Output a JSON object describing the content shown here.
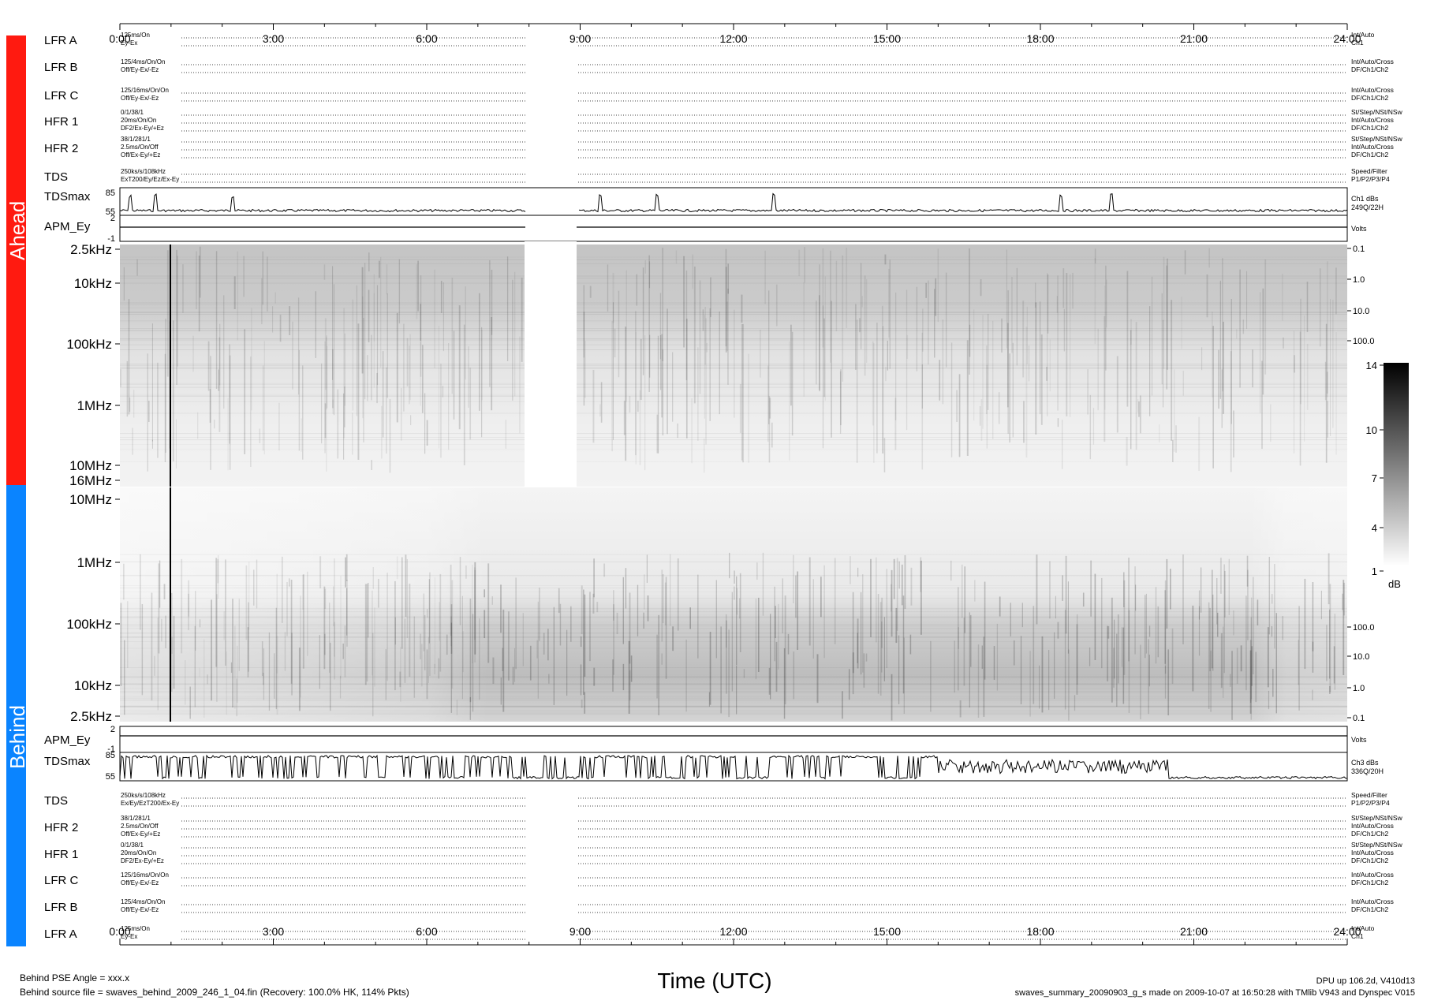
{
  "time_axis": {
    "ticks": [
      "0:00",
      "3:00",
      "6:00",
      "9:00",
      "12:00",
      "15:00",
      "18:00",
      "21:00",
      "24:00"
    ],
    "xlabel": "Time (UTC)"
  },
  "side_labels": {
    "ahead": "Ahead",
    "behind": "Behind"
  },
  "ahead_rows": [
    {
      "label": "LFR A",
      "left": [
        "125ms/On",
        "Ey-Ex"
      ],
      "right": [
        "Int/Auto",
        "Ch1"
      ]
    },
    {
      "label": "LFR B",
      "left": [
        "125/4ms/On/On",
        "Off/Ey-Ex/-Ez"
      ],
      "right": [
        "Int/Auto/Cross",
        "DF/Ch1/Ch2"
      ]
    },
    {
      "label": "LFR C",
      "left": [
        "125/16ms/On/On",
        "Off/Ey-Ex/-Ez"
      ],
      "right": [
        "Int/Auto/Cross",
        "DF/Ch1/Ch2"
      ]
    },
    {
      "label": "HFR 1",
      "left": [
        "0/1/38/1",
        "20ms/On/On",
        "DF2/Ex-Ey/+Ez"
      ],
      "right": [
        "St/Step/NSt/NSw",
        "Int/Auto/Cross",
        "DF/Ch1/Ch2"
      ]
    },
    {
      "label": "HFR 2",
      "left": [
        "38/1/281/1",
        "2.5ms/On/Off",
        "Off/Ex-Ey/+Ez"
      ],
      "right": [
        "St/Step/NSt/NSw",
        "Int/Auto/Cross",
        "DF/Ch1/Ch2"
      ]
    },
    {
      "label": "TDS",
      "left": [
        "250ks/s/108kHz",
        "ExT200/Ey/Ez/Ex-Ey"
      ],
      "right": [
        "Speed/Filter",
        "P1/P2/P3/P4"
      ]
    }
  ],
  "behind_rows": [
    {
      "label": "TDS",
      "left": [
        "250ks/s/108kHz",
        "Ex/Ey/EzT200/Ex-Ey"
      ],
      "right": [
        "Speed/Filter",
        "P1/P2/P3/P4"
      ]
    },
    {
      "label": "HFR 2",
      "left": [
        "38/1/281/1",
        "2.5ms/On/Off",
        "Off/Ex-Ey/+Ez"
      ],
      "right": [
        "St/Step/NSt/NSw",
        "Int/Auto/Cross",
        "DF/Ch1/Ch2"
      ]
    },
    {
      "label": "HFR 1",
      "left": [
        "0/1/38/1",
        "20ms/On/On",
        "DF2/Ex-Ey/+Ez"
      ],
      "right": [
        "St/Step/NSt/NSw",
        "Int/Auto/Cross",
        "DF/Ch1/Ch2"
      ]
    },
    {
      "label": "LFR C",
      "left": [
        "125/16ms/On/On",
        "Off/Ey-Ex/-Ez"
      ],
      "right": [
        "Int/Auto/Cross",
        "DF/Ch1/Ch2"
      ]
    },
    {
      "label": "LFR B",
      "left": [
        "125/4ms/On/On",
        "Off/Ey-Ex/-Ez"
      ],
      "right": [
        "Int/Auto/Cross",
        "DF/Ch1/Ch2"
      ]
    },
    {
      "label": "LFR A",
      "left": [
        "125ms/On",
        "Ey-Ex"
      ],
      "right": [
        "Int/Auto",
        "Ch1"
      ]
    }
  ],
  "ahead_tdsmax": {
    "label": "TDSmax",
    "ticks": [
      "85",
      "55"
    ],
    "right": [
      "Ch1 dBs",
      "249Q/22H"
    ]
  },
  "ahead_apm": {
    "label": "APM_Ey",
    "ticks": [
      "2",
      "-1"
    ],
    "right": [
      "Volts"
    ]
  },
  "behind_apm": {
    "label": "APM_Ey",
    "ticks": [
      "2",
      "-1"
    ],
    "right": [
      "Volts"
    ]
  },
  "behind_tdsmax": {
    "label": "TDSmax",
    "ticks": [
      "85",
      "55"
    ],
    "right": [
      "Ch3 dBs",
      "336Q/20H"
    ]
  },
  "ahead_freq_ticks": [
    "2.5kHz",
    "10kHz",
    "100kHz",
    "1MHz",
    "10MHz",
    "16MHz"
  ],
  "behind_freq_ticks": [
    "10MHz",
    "1MHz",
    "100kHz",
    "10kHz",
    "2.5kHz"
  ],
  "ahead_right_scale": [
    "0.1",
    "1.0",
    "10.0",
    "100.0"
  ],
  "behind_right_scale": [
    "100.0",
    "10.0",
    "1.0",
    "0.1"
  ],
  "colorbar": {
    "ticks": [
      "14",
      "10",
      "7",
      "4",
      "1"
    ],
    "unit": "dB"
  },
  "footer": {
    "left1": "Behind PSE Angle = xxx.x",
    "left2": "Behind source file = swaves_behind_2009_246_1_04.fin (Recovery: 100.0% HK, 114% Pkts)",
    "right1": "DPU up 106.2d, V410d13",
    "right2": "swaves_summary_20090903_g_s made on 2009-10-07 at 16:50:28 with TMlib V943 and Dynspec V015"
  },
  "colors": {
    "ahead": "#ff1a10",
    "behind": "#0a84ff",
    "ink": "#000000"
  },
  "chart_data": {
    "type": "heatmap",
    "title": "",
    "xlabel": "Time (UTC)",
    "x_ticks": [
      "0:00",
      "3:00",
      "6:00",
      "9:00",
      "12:00",
      "15:00",
      "18:00",
      "21:00",
      "24:00"
    ],
    "x_range_hours": [
      0,
      24
    ],
    "panels": [
      {
        "name": "Ahead",
        "freq_ticks": [
          "2.5kHz",
          "10kHz",
          "100kHz",
          "1MHz",
          "10MHz",
          "16MHz"
        ],
        "data_gap_hours": [
          8.0,
          9.0
        ]
      },
      {
        "name": "Behind",
        "freq_ticks": [
          "10MHz",
          "1MHz",
          "100kHz",
          "10kHz",
          "2.5kHz"
        ]
      }
    ],
    "colorbar_dB": [
      1,
      14
    ],
    "ahead_tdsmax_spikes_hours": [
      0.2,
      0.7,
      2.2,
      9.4,
      10.5,
      12.8,
      18.4,
      19.4
    ],
    "behind_tdsmax_events_hours": [
      0.5,
      1.5,
      2.5,
      3.5,
      4.5,
      5.7,
      7.2,
      9.8,
      11.5,
      13.2,
      14.3,
      16.0,
      18.0,
      20.3,
      23.6
    ]
  }
}
